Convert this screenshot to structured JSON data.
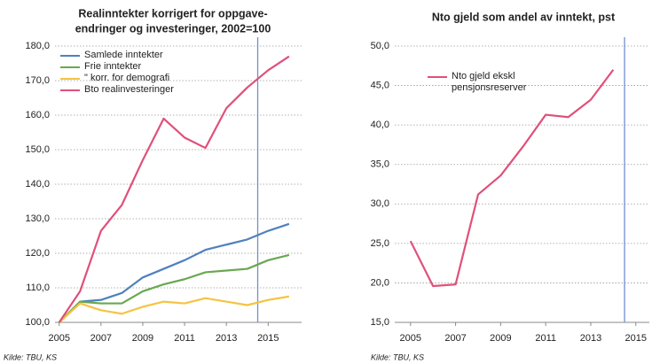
{
  "chart_data": [
    {
      "type": "line",
      "title": [
        "Realinntekter korrigert for oppgave-",
        "endringer og investeringer, 2002=100"
      ],
      "x": [
        2005,
        2006,
        2007,
        2008,
        2009,
        2010,
        2011,
        2012,
        2013,
        2014,
        2015,
        2016
      ],
      "series": [
        {
          "name": "Samlede inntekter",
          "color": "#4f81bd",
          "values": [
            100,
            106,
            106.5,
            108.5,
            113,
            115.5,
            118,
            121,
            122.5,
            124,
            126.5,
            128.5
          ]
        },
        {
          "name": "Frie inntekter",
          "color": "#6aa84f",
          "values": [
            100,
            106,
            105.5,
            105.5,
            109,
            111,
            112.5,
            114.5,
            115,
            115.5,
            118,
            119.5
          ]
        },
        {
          "name": "\" korr. for demografi",
          "color": "#f6c342",
          "values": [
            100,
            105.5,
            103.5,
            102.5,
            104.5,
            106,
            105.5,
            107,
            106,
            105,
            106.5,
            107.5
          ]
        },
        {
          "name": "Bto realinvesteringer",
          "color": "#e0507a",
          "values": [
            100,
            109,
            126.5,
            134,
            147,
            159,
            153.5,
            150.5,
            162,
            168,
            173,
            177
          ]
        }
      ],
      "xlim": [
        2004.8,
        2016.6
      ],
      "xticks": [
        2005,
        2007,
        2009,
        2011,
        2013,
        2015
      ],
      "ylim": [
        100,
        180
      ],
      "yticks": [
        {
          "value": 100,
          "label": "100,0"
        },
        {
          "value": 110,
          "label": "110,0"
        },
        {
          "value": 120,
          "label": "120,0"
        },
        {
          "value": 130,
          "label": "130,0"
        },
        {
          "value": 140,
          "label": "140,0"
        },
        {
          "value": 150,
          "label": "150,0"
        },
        {
          "value": 160,
          "label": "160,0"
        },
        {
          "value": 170,
          "label": "170,0"
        },
        {
          "value": 180,
          "label": "180,0"
        }
      ],
      "grid": true,
      "reference_x": 2014.5,
      "reference_color": "#6f8fd0",
      "source": "Kilde: TBU, KS"
    },
    {
      "type": "line",
      "title": [
        "Nto gjeld som andel av inntekt, pst"
      ],
      "x": [
        2005,
        2006,
        2007,
        2008,
        2009,
        2010,
        2011,
        2012,
        2013,
        2014
      ],
      "series": [
        {
          "name": "Nto gjeld ekskl pensjonsreserver",
          "color": "#e0507a",
          "values": [
            25.3,
            19.6,
            19.8,
            31.2,
            33.6,
            37.3,
            41.3,
            41.0,
            43.2,
            47.0
          ]
        }
      ],
      "xlim": [
        2004.3,
        2015.6
      ],
      "xticks": [
        2005,
        2007,
        2009,
        2011,
        2013,
        2015
      ],
      "ylim": [
        15,
        50
      ],
      "yticks": [
        {
          "value": 15,
          "label": "15,0"
        },
        {
          "value": 20,
          "label": "20,0"
        },
        {
          "value": 25,
          "label": "25,0"
        },
        {
          "value": 30,
          "label": "30,0"
        },
        {
          "value": 35,
          "label": "35,0"
        },
        {
          "value": 40,
          "label": "40,0"
        },
        {
          "value": 45,
          "label": "45,0"
        },
        {
          "value": 50,
          "label": "50,0"
        }
      ],
      "grid": true,
      "reference_x": 2014.5,
      "reference_color": "#6f8fd0",
      "source": "Kilde: TBU, KS"
    }
  ]
}
